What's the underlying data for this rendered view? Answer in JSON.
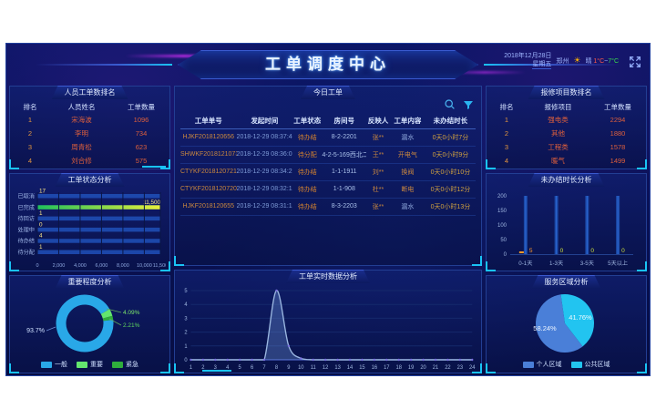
{
  "header": {
    "title": "工单调度中心",
    "date": "2018年12月28日",
    "weekday": "星期五",
    "city": "郑州",
    "weather": "晴",
    "temp_low": "1°C",
    "temp_sep": "~",
    "temp_high": "7°C"
  },
  "left": {
    "personnel_ranking": {
      "title": "人员工单数排名",
      "columns": [
        "排名",
        "人员姓名",
        "工单数量"
      ],
      "rows": [
        {
          "rank": "1",
          "name": "宋海波",
          "count": "1096"
        },
        {
          "rank": "2",
          "name": "李明",
          "count": "734"
        },
        {
          "rank": "3",
          "name": "周青松",
          "count": "623"
        },
        {
          "rank": "4",
          "name": "刘合修",
          "count": "575"
        }
      ]
    }
  },
  "right": {
    "repair_ranking": {
      "title": "报修项目数排名",
      "columns": [
        "排名",
        "报修项目",
        "工单数量"
      ],
      "rows": [
        {
          "rank": "1",
          "name": "强电类",
          "count": "2294"
        },
        {
          "rank": "2",
          "name": "其他",
          "count": "1880"
        },
        {
          "rank": "3",
          "name": "工程类",
          "count": "1578"
        },
        {
          "rank": "4",
          "name": "暖气",
          "count": "1499"
        }
      ]
    }
  },
  "center": {
    "today_orders": {
      "tab_title": "今日工单",
      "columns": [
        "工单单号",
        "发起时间",
        "工单状态",
        "房间号",
        "反映人",
        "工单内容",
        "未办结时长"
      ],
      "rows": [
        [
          "HJKF2018120656",
          "2018-12-29 08:37:40",
          "待办结",
          "8-2-2201",
          "张**",
          "漏水",
          "0天0小时7分"
        ],
        [
          "SHWKF2018121073",
          "2018-12-29 08:36:03",
          "待分配",
          "4-2-5-169西北二",
          "王**",
          "开电气",
          "0天0小时9分"
        ],
        [
          "CTYKF2018120721",
          "2018-12-29 08:34:26",
          "待办结",
          "1-1-1911",
          "刘**",
          "换阀",
          "0天0小时10分"
        ],
        [
          "CTYKF2018120720",
          "2018-12-29 08:32:12",
          "待办结",
          "1-1-908",
          "杜**",
          "断电",
          "0天0小时12分"
        ],
        [
          "HJKF2018120655",
          "2018-12-29 08:31:15",
          "待办结",
          "8-3-2203",
          "张**",
          "漏水",
          "0天0小时13分"
        ]
      ],
      "content_tone": [
        "blue",
        "orange",
        "orange",
        "orange",
        "blue"
      ]
    }
  },
  "chart_data": [
    {
      "id": "status",
      "type": "bar",
      "orientation": "horizontal",
      "title": "工单状态分析",
      "categories": [
        "已取消",
        "已完成",
        "待回访",
        "处理中",
        "待办结",
        "待分配"
      ],
      "values": [
        17,
        11500,
        1,
        0,
        4,
        1
      ],
      "xlim": [
        0,
        11500
      ],
      "xticks": [
        0,
        2000,
        4000,
        6000,
        8000,
        10000,
        11500
      ],
      "track_color": "#2050b8",
      "highlight_index": 1,
      "highlight_gradient": [
        "#1fc05a",
        "#e8ee3a"
      ],
      "value_color": "#ffe98a"
    },
    {
      "id": "importance",
      "type": "pie",
      "subtype": "donut",
      "title": "重要程度分析",
      "labels": [
        "一般",
        "重要",
        "紧急"
      ],
      "values": [
        93.7,
        4.09,
        2.21
      ],
      "pct_labels": [
        "93.7%",
        "4.09%",
        "2.21%"
      ],
      "colors": [
        "#29a8e8",
        "#63e66e",
        "#2fae3c"
      ],
      "legend_position": "bottom"
    },
    {
      "id": "realtime",
      "type": "area",
      "title": "工单实时数据分析",
      "x": [
        1,
        2,
        3,
        4,
        5,
        6,
        7,
        8,
        9,
        10,
        11,
        12,
        13,
        14,
        15,
        16,
        17,
        18,
        19,
        20,
        21,
        22,
        23,
        24
      ],
      "values": [
        0,
        0,
        0,
        0,
        0,
        0,
        0,
        5,
        1,
        0.1,
        0,
        0,
        0,
        0,
        0,
        0,
        0,
        0,
        0,
        0,
        0,
        0,
        0,
        0
      ],
      "ylim": [
        0,
        5
      ],
      "yticks": [
        0,
        1,
        2,
        3,
        4,
        5
      ],
      "line_color": "#9ab6e0",
      "fill_color": "rgba(110,150,220,0.35)"
    },
    {
      "id": "duration",
      "type": "bar",
      "title": "未办结时长分析",
      "categories": [
        "0-1天",
        "1-3天",
        "3-5天",
        "5天以上"
      ],
      "values": [
        5,
        0,
        0,
        0
      ],
      "ylim": [
        0,
        200
      ],
      "yticks": [
        0,
        50,
        100,
        150,
        200
      ],
      "track_color": "#1d4fae",
      "value_colors": [
        "#ff9a2a",
        "#cfe03a",
        "#cfe03a",
        "#cfe03a"
      ]
    },
    {
      "id": "service",
      "type": "pie",
      "title": "服务区域分析",
      "labels": [
        "个人区域",
        "公共区域"
      ],
      "values": [
        58.24,
        41.76
      ],
      "pct_labels": [
        "58.24%",
        "41.76%"
      ],
      "colors": [
        "#4a7fd8",
        "#22c4f0"
      ],
      "legend_position": "bottom"
    }
  ]
}
